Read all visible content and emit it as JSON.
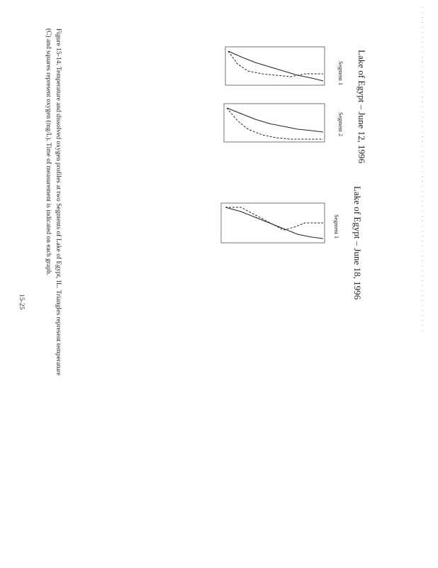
{
  "page": {
    "figures": [
      {
        "title": "Lake of Egypt – June 12, 1996",
        "panels": [
          "Segment 1",
          "Segment 2"
        ]
      },
      {
        "title": "Lake of Egypt – June 18, 1996",
        "panels": [
          "Segment 1"
        ]
      }
    ],
    "caption": [
      "Figure 15-14. Temperature and dissolved oxygen profiles at two Segments of Lake of Egypt, IL. Triangles represent temperature",
      "(C) and squares represent oxygen (mg/L). Time of measurement is indicated on each graph."
    ],
    "page_number": "15-25"
  }
}
